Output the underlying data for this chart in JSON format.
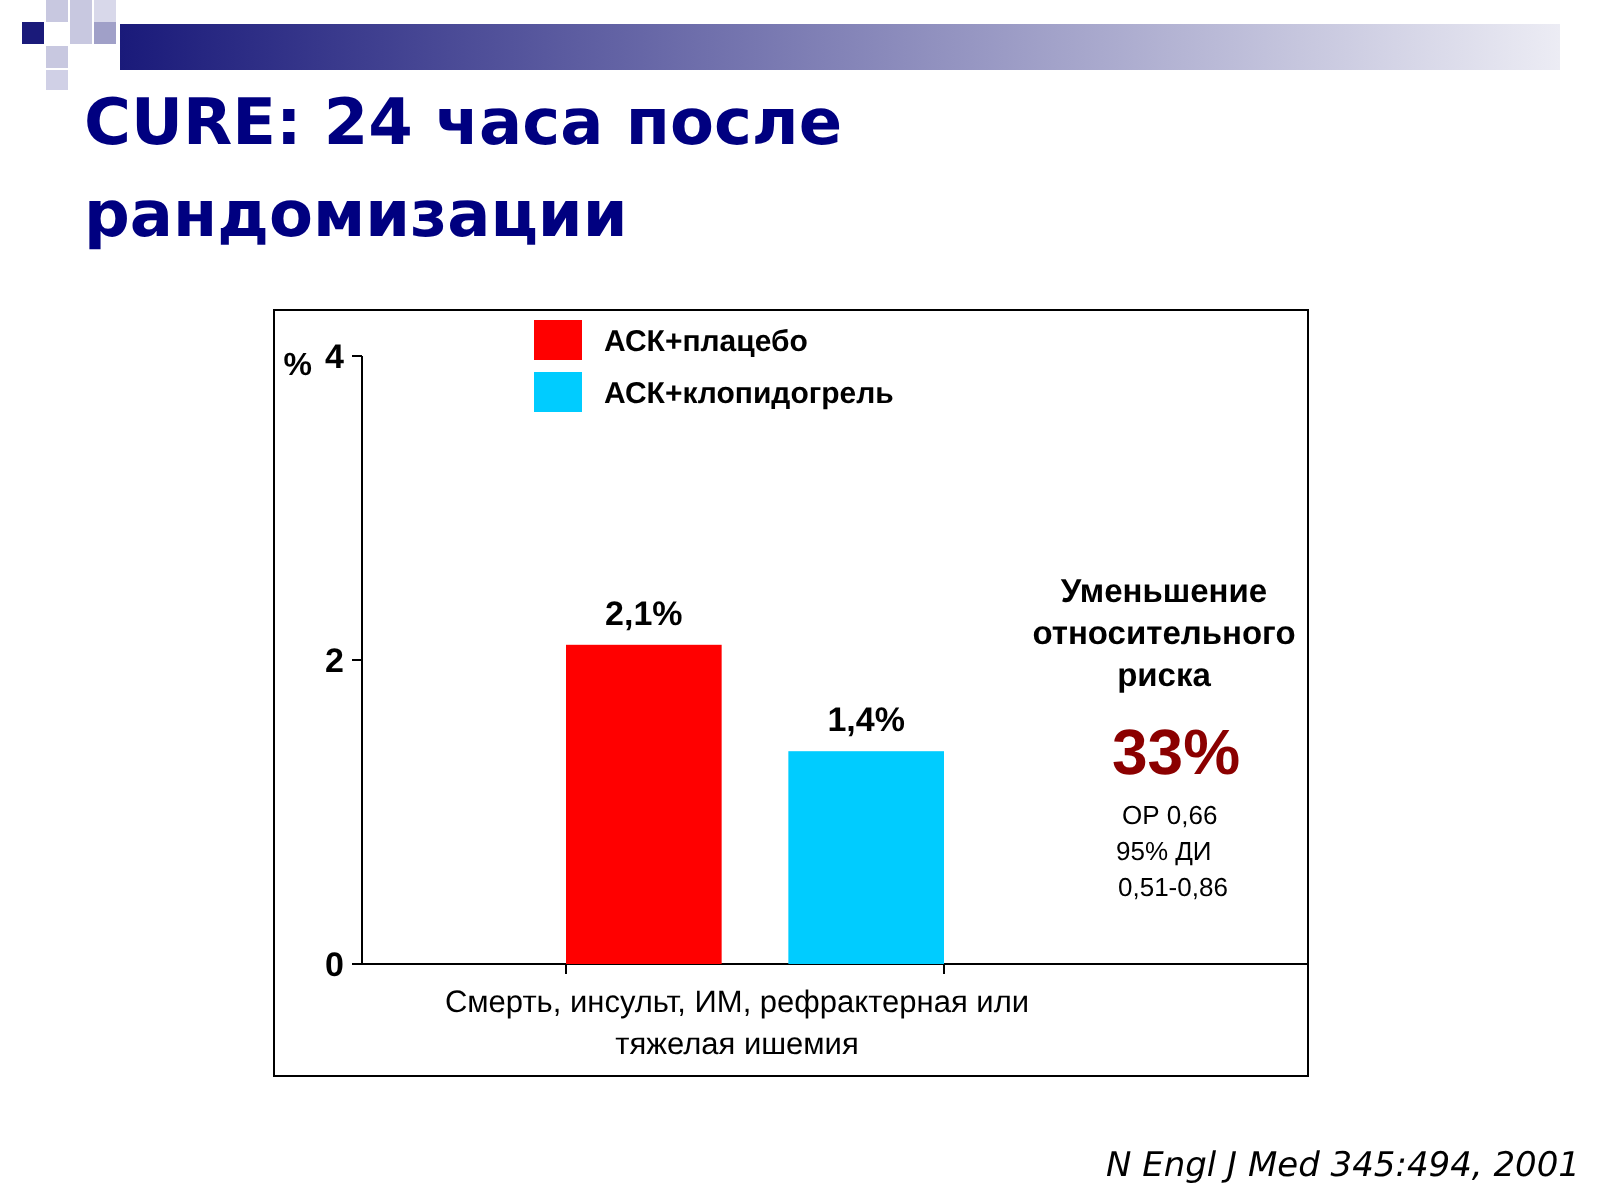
{
  "chart_data": {
    "type": "bar",
    "title": "CURE: 24 часа после рандомизации",
    "categories": [
      "Смерть, инсульт, ИМ, рефрактерная или тяжелая ишемия"
    ],
    "series": [
      {
        "name": "АСК+плацебо",
        "color": "#ff0000",
        "values": [
          2.1
        ],
        "value_labels": [
          "2,1%"
        ]
      },
      {
        "name": "АСК+клопидогрель",
        "color": "#00ccff",
        "values": [
          1.4
        ],
        "value_labels": [
          "1,4%"
        ]
      }
    ],
    "ylabel": "%",
    "ylim": [
      0,
      4
    ],
    "yticks": [
      0,
      2,
      4
    ],
    "legend": "top",
    "annotations": [
      "Уменьшение относительного риска",
      "33%",
      "ОР 0,66",
      "95% ДИ",
      "0,51-0,86",
      "N Engl J Med 345:494, 2001"
    ]
  }
}
